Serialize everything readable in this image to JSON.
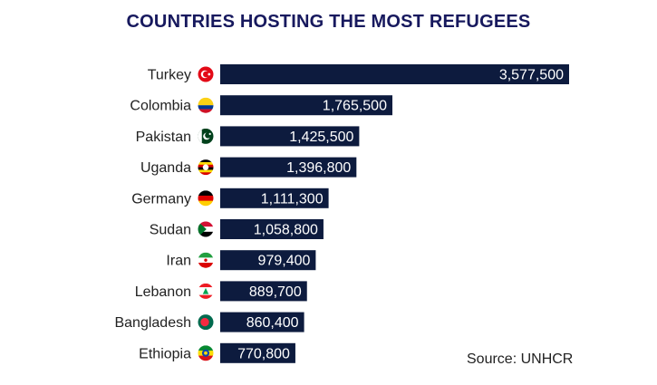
{
  "chart_data": {
    "type": "bar",
    "orientation": "horizontal",
    "title": "COUNTRIES HOSTING THE MOST REFUGEES",
    "categories": [
      "Turkey",
      "Colombia",
      "Pakistan",
      "Uganda",
      "Germany",
      "Sudan",
      "Iran",
      "Lebanon",
      "Bangladesh",
      "Ethiopia"
    ],
    "values": [
      3577500,
      1765500,
      1425500,
      1396800,
      1111300,
      1058800,
      979400,
      889700,
      860400,
      770800
    ],
    "value_labels": [
      "3,577,500",
      "1,765,500",
      "1,425,500",
      "1,396,800",
      "1,111,300",
      "1,058,800",
      "979,400",
      "889,700",
      "860,400",
      "770,800"
    ],
    "flag_icons": [
      "turkey-flag-icon",
      "colombia-flag-icon",
      "pakistan-flag-icon",
      "uganda-flag-icon",
      "germany-flag-icon",
      "sudan-flag-icon",
      "iran-flag-icon",
      "lebanon-flag-icon",
      "bangladesh-flag-icon",
      "ethiopia-flag-icon"
    ],
    "xlabel": "",
    "ylabel": "",
    "xlim": [
      0,
      3577500
    ],
    "grid": false,
    "legend": "none",
    "bar_color": "#0d1b3e",
    "source": "Source: UNHCR"
  }
}
